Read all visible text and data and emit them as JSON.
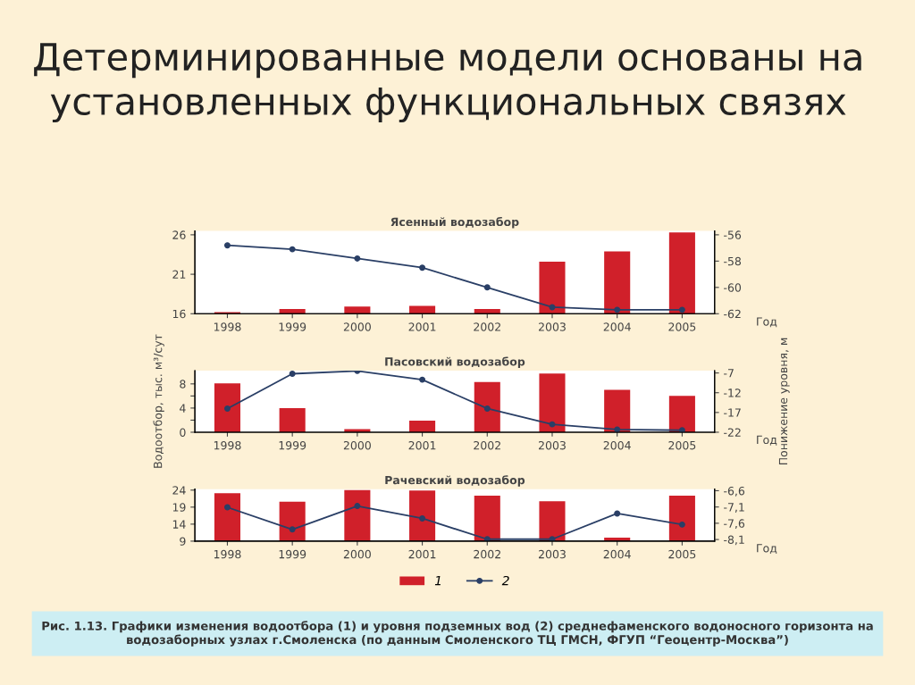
{
  "chart_data": [
    {
      "type": "bar",
      "title": "Ясенный водозабор",
      "xlabel": "Год",
      "annotations": [
        "Детерминированные модели основаны на установленных функциональных связях"
      ],
      "categories": [
        "1998",
        "1999",
        "2000",
        "2001",
        "2002",
        "2003",
        "2004",
        "2005"
      ],
      "series": [
        {
          "color": "#d0202a",
          "values": [
            16.2,
            16.6,
            16.9,
            17.0,
            16.6,
            22.6,
            23.9,
            26.3
          ]
        },
        {
          "type": "line",
          "axis": "y2",
          "color": "#2a3f66",
          "values": [
            -56.8,
            -57.1,
            -57.8,
            -58.5,
            -60.0,
            -61.5,
            -61.7,
            -61.7
          ]
        }
      ],
      "ylim": [
        16,
        26.5
      ],
      "yticks": [
        16,
        21,
        26
      ],
      "y2lim": [
        -62,
        -55.7
      ],
      "y2ticks": [
        -62,
        -60,
        -58,
        -56
      ],
      "marker": "circle",
      "line_style": "solid",
      "grid": false,
      "legend": false
    },
    {
      "type": "bar",
      "title": "Пасовский водозабор",
      "xlabel": "Год",
      "ylabel": "Водоотбор, тыс. м³/сут",
      "y2label": "Понижение уровня, м",
      "categories": [
        "1998",
        "1999",
        "2000",
        "2001",
        "2002",
        "2003",
        "2004",
        "2005"
      ],
      "series": [
        {
          "color": "#d0202a",
          "values": [
            8.1,
            4.0,
            0.5,
            1.9,
            8.3,
            9.7,
            7.0,
            6.0
          ]
        },
        {
          "type": "line",
          "axis": "y2",
          "color": "#2a3f66",
          "values": [
            -16.0,
            -7.2,
            -6.5,
            -8.7,
            -16.0,
            -20.0,
            -21.3,
            -21.5
          ]
        }
      ],
      "ylim": [
        0,
        10.2
      ],
      "yticks": [
        0,
        {
          "value": 2,
          "label": null
        },
        4,
        {
          "value": 6,
          "label": null
        },
        8
      ],
      "y2lim": [
        -22,
        -6.4
      ],
      "y2ticks": [
        -22,
        -17,
        -12,
        -7
      ],
      "marker": "circle",
      "line_style": "solid",
      "grid": false,
      "legend": false
    },
    {
      "type": "bar",
      "title": "Рачевский водозабор",
      "xlabel": "Год",
      "annotations": [
        "Рис. 1.13. Графики изменения водоотбора (1) и уровня подземных вод (2) среднефаменского водоносного горизонта на водозаборных узлах г.Смоленска (по данным Смоленского ТЦ ГМСН, ФГУП “Геоцентр-Москва”)"
      ],
      "categories": [
        "1998",
        "1999",
        "2000",
        "2001",
        "2002",
        "2003",
        "2004",
        "2005"
      ],
      "series": [
        {
          "name": "1",
          "color": "#d0202a",
          "values": [
            23.1,
            20.6,
            24.0,
            23.9,
            22.4,
            20.7,
            10.0,
            22.4
          ]
        },
        {
          "type": "line",
          "name": "2",
          "axis": "y2",
          "color": "#2a3f66",
          "values": [
            -7.11,
            -7.79,
            -7.07,
            -7.45,
            -8.09,
            -8.09,
            -7.3,
            -7.64
          ]
        }
      ],
      "ylim": [
        9,
        24.3
      ],
      "yticks": [
        9,
        14,
        19,
        24
      ],
      "y2lim": [
        -8.15,
        -6.55
      ],
      "y2ticks": [
        {
          "value": -8.1,
          "label": "-8,1"
        },
        {
          "value": -7.6,
          "label": "-7,6"
        },
        {
          "value": -7.1,
          "label": "-7,1"
        },
        {
          "value": -6.6,
          "label": "-6,6"
        }
      ],
      "marker": "circle",
      "line_style": "solid",
      "grid": false,
      "legend": "bottom"
    }
  ]
}
